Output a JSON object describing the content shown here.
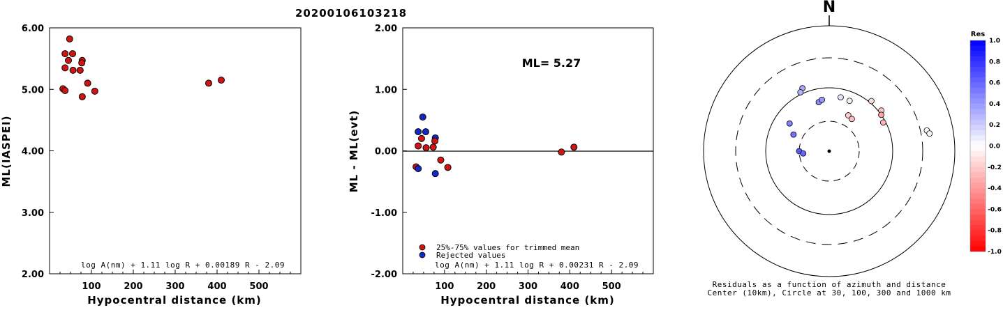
{
  "title": "20200106103218",
  "chart_data": [
    {
      "type": "scatter",
      "xlabel": "Hypocentral distance (km)",
      "ylabel": "ML(IASPEI)",
      "xlim": [
        0,
        600
      ],
      "ylim": [
        2.0,
        6.0
      ],
      "xticks": [
        "100",
        "200",
        "300",
        "400",
        "500"
      ],
      "yticks": [
        "2.00",
        "3.00",
        "4.00",
        "5.00",
        "6.00"
      ],
      "formula": "log A(nm) + 1.11 log R + 0.00189 R - 2.09",
      "points": [
        {
          "x": 48,
          "y": 5.82,
          "c": "#d11414"
        },
        {
          "x": 37,
          "y": 5.58,
          "c": "#d11414"
        },
        {
          "x": 55,
          "y": 5.58,
          "c": "#d11414"
        },
        {
          "x": 45,
          "y": 5.47,
          "c": "#d11414"
        },
        {
          "x": 78,
          "y": 5.47,
          "c": "#d11414"
        },
        {
          "x": 77,
          "y": 5.43,
          "c": "#d11414"
        },
        {
          "x": 37,
          "y": 5.35,
          "c": "#d11414"
        },
        {
          "x": 56,
          "y": 5.31,
          "c": "#d11414"
        },
        {
          "x": 73,
          "y": 5.31,
          "c": "#d11414"
        },
        {
          "x": 91,
          "y": 5.1,
          "c": "#d11414"
        },
        {
          "x": 32,
          "y": 5.01,
          "c": "#d11414"
        },
        {
          "x": 37,
          "y": 4.98,
          "c": "#d11414"
        },
        {
          "x": 108,
          "y": 4.97,
          "c": "#d11414"
        },
        {
          "x": 78,
          "y": 4.88,
          "c": "#d11414"
        },
        {
          "x": 380,
          "y": 5.1,
          "c": "#d11414"
        },
        {
          "x": 410,
          "y": 5.15,
          "c": "#d11414"
        }
      ]
    },
    {
      "type": "scatter",
      "xlabel": "Hypocentral distance (km)",
      "ylabel": "ML - ML(evt)",
      "xlim": [
        0,
        600
      ],
      "ylim": [
        -2.0,
        2.0
      ],
      "xticks": [
        "100",
        "200",
        "300",
        "400",
        "500"
      ],
      "yticks": [
        "-2.00",
        "-1.00",
        "0.00",
        "1.00",
        "2.00"
      ],
      "annotation": "ML= 5.27",
      "formula": "log A(nm) + 1.11 log R + 0.00231 R - 2.09",
      "legend": [
        {
          "label": "25%-75% values for trimmed mean",
          "color": "#d11414"
        },
        {
          "label": "Rejected values",
          "color": "#1428c8"
        }
      ],
      "points": [
        {
          "x": 48,
          "y": 0.55,
          "c": "#1428c8"
        },
        {
          "x": 37,
          "y": 0.31,
          "c": "#1428c8"
        },
        {
          "x": 55,
          "y": 0.31,
          "c": "#1428c8"
        },
        {
          "x": 78,
          "y": 0.21,
          "c": "#1428c8"
        },
        {
          "x": 45,
          "y": 0.2,
          "c": "#d11414"
        },
        {
          "x": 77,
          "y": 0.16,
          "c": "#d11414"
        },
        {
          "x": 37,
          "y": 0.08,
          "c": "#d11414"
        },
        {
          "x": 56,
          "y": 0.05,
          "c": "#d11414"
        },
        {
          "x": 73,
          "y": 0.06,
          "c": "#d11414"
        },
        {
          "x": 91,
          "y": -0.15,
          "c": "#d11414"
        },
        {
          "x": 32,
          "y": -0.26,
          "c": "#d11414"
        },
        {
          "x": 37,
          "y": -0.29,
          "c": "#1428c8"
        },
        {
          "x": 108,
          "y": -0.27,
          "c": "#d11414"
        },
        {
          "x": 78,
          "y": -0.37,
          "c": "#1428c8"
        },
        {
          "x": 380,
          "y": -0.02,
          "c": "#d11414"
        },
        {
          "x": 410,
          "y": 0.06,
          "c": "#d11414"
        }
      ]
    },
    {
      "type": "polar-scatter",
      "north_label": "N",
      "caption_lines": [
        "Residuals as a function of azimuth and distance",
        "Center (10km), Circle at 30, 100, 300 and 1000 km"
      ],
      "circles_km": [
        30,
        100,
        300,
        1000
      ],
      "colorbar": {
        "title": "Res",
        "labels": [
          "1.0",
          "0.8",
          "0.6",
          "0.4",
          "0.2",
          "0.0",
          "-0.2",
          "-0.4",
          "-0.6",
          "-0.8",
          "-1.0"
        ]
      },
      "points": [
        {
          "az": 337,
          "km": 120,
          "res": 0.34
        },
        {
          "az": 334,
          "km": 108,
          "res": 0.3
        },
        {
          "az": 305,
          "km": 58,
          "res": 0.5
        },
        {
          "az": 295,
          "km": 42,
          "res": 0.56
        },
        {
          "az": 270,
          "km": 30,
          "res": 0.64
        },
        {
          "az": 265,
          "km": 26,
          "res": 0.6
        },
        {
          "az": 348,
          "km": 62,
          "res": 0.45
        },
        {
          "az": 352,
          "km": 66,
          "res": 0.4
        },
        {
          "az": 12,
          "km": 74,
          "res": 0.12
        },
        {
          "az": 22,
          "km": 72,
          "res": 0.05
        },
        {
          "az": 28,
          "km": 44,
          "res": -0.2
        },
        {
          "az": 35,
          "km": 42,
          "res": -0.26
        },
        {
          "az": 40,
          "km": 108,
          "res": -0.14
        },
        {
          "az": 52,
          "km": 110,
          "res": -0.2
        },
        {
          "az": 55,
          "km": 100,
          "res": -0.36
        },
        {
          "az": 62,
          "km": 92,
          "res": -0.3
        },
        {
          "az": 78,
          "km": 380,
          "res": 0.02
        },
        {
          "az": 80,
          "km": 410,
          "res": -0.06
        }
      ]
    }
  ]
}
